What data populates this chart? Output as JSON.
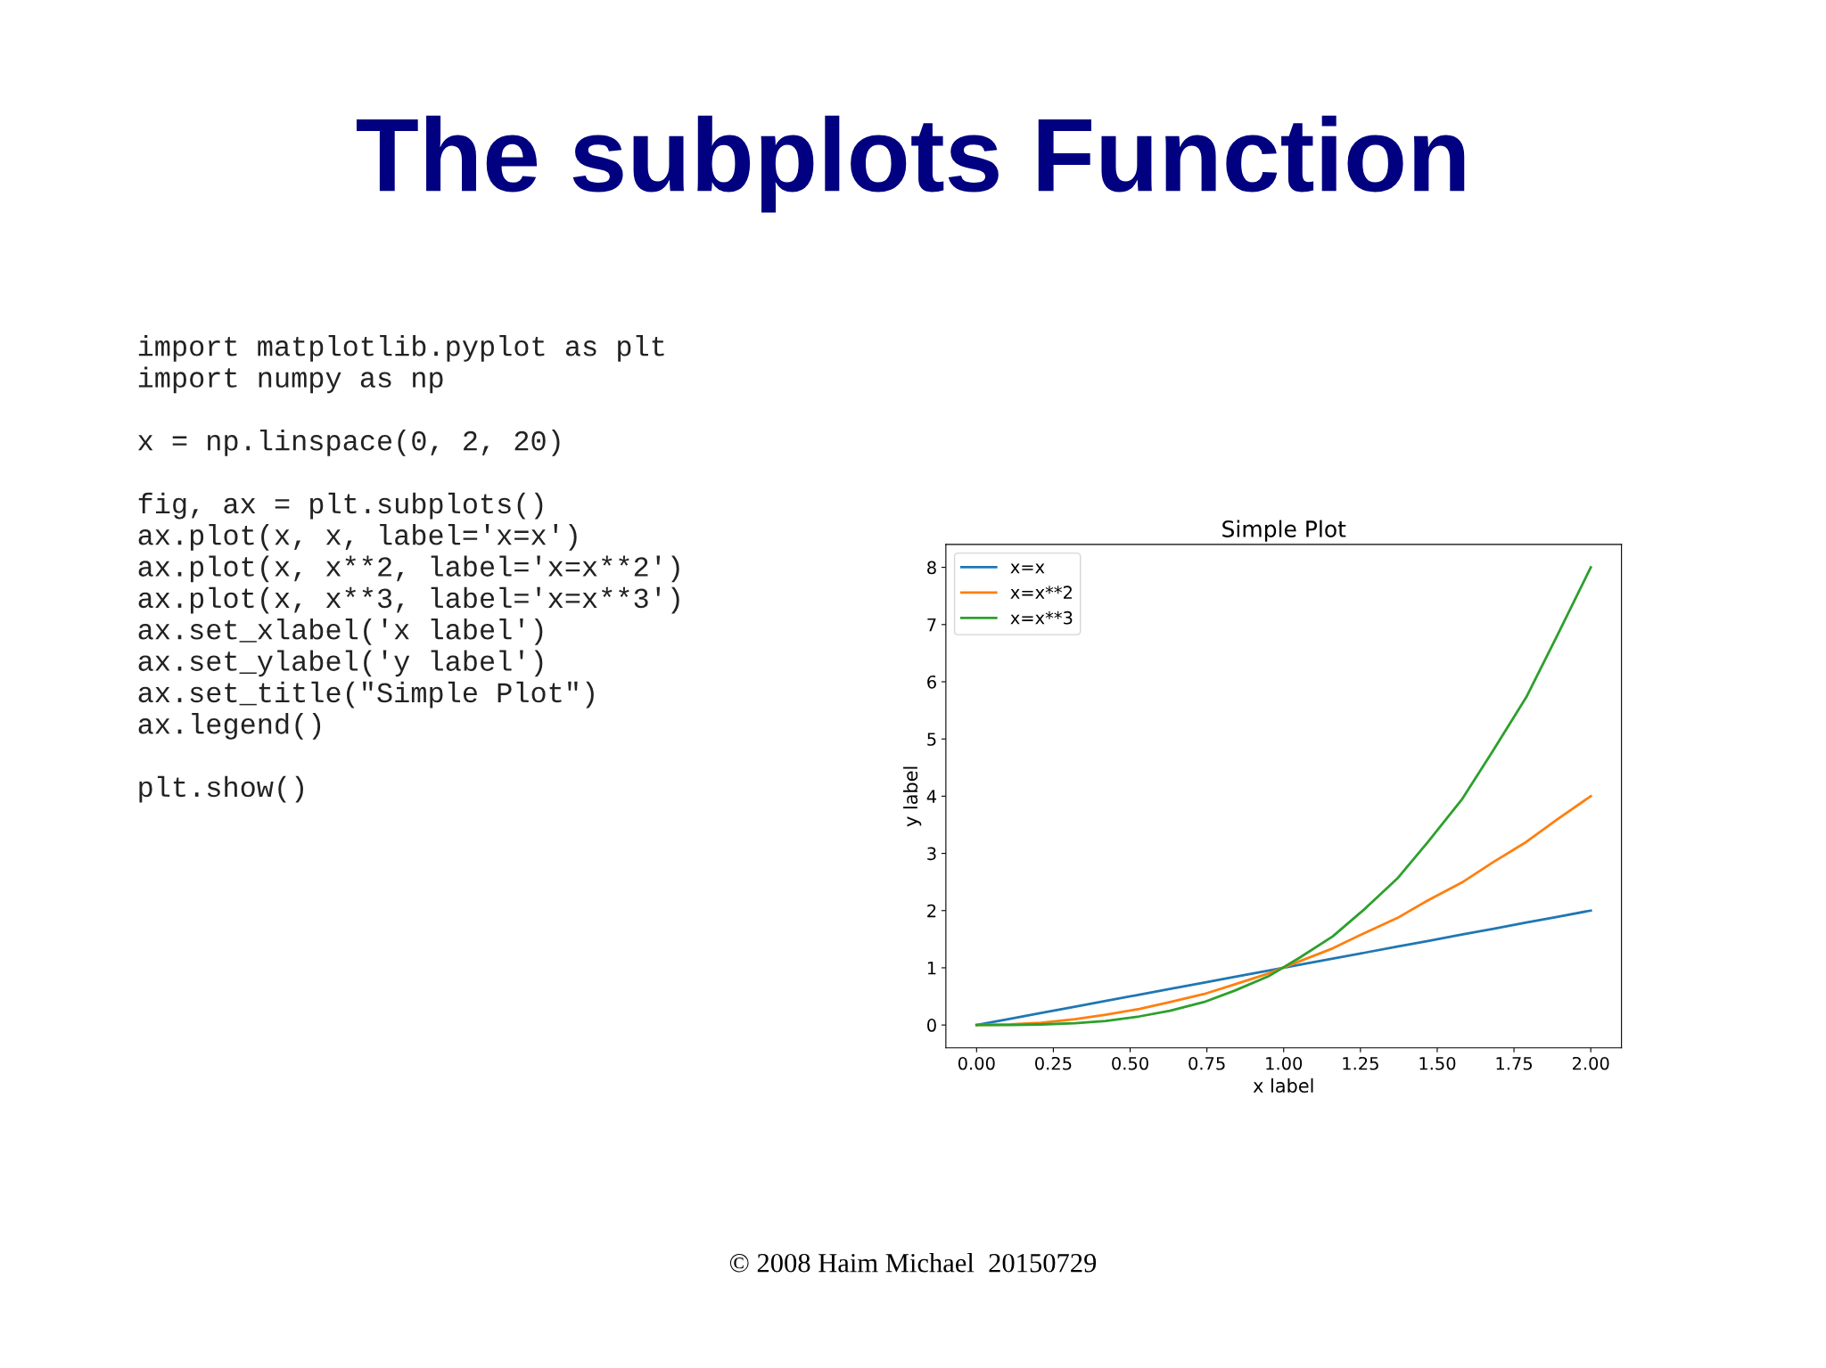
{
  "chart_data": {
    "type": "line",
    "title": "Simple Plot",
    "xlabel": "x label",
    "ylabel": "y label",
    "x": [
      0,
      0.11,
      0.21,
      0.32,
      0.42,
      0.53,
      0.63,
      0.74,
      0.84,
      0.95,
      1.05,
      1.16,
      1.26,
      1.37,
      1.47,
      1.58,
      1.68,
      1.79,
      1.89,
      2
    ],
    "series": [
      {
        "name": "x=x",
        "color": "#1f77b4",
        "values": [
          0,
          0.11,
          0.21,
          0.32,
          0.42,
          0.53,
          0.63,
          0.74,
          0.84,
          0.95,
          1.05,
          1.16,
          1.26,
          1.37,
          1.47,
          1.58,
          1.68,
          1.79,
          1.89,
          2
        ]
      },
      {
        "name": "x=x**2",
        "color": "#ff7f0e",
        "values": [
          0,
          0.01,
          0.04,
          0.1,
          0.18,
          0.28,
          0.4,
          0.54,
          0.71,
          0.9,
          1.11,
          1.34,
          1.6,
          1.87,
          2.18,
          2.49,
          2.84,
          3.2,
          3.59,
          4
        ]
      },
      {
        "name": "x=x**3",
        "color": "#2ca02c",
        "values": [
          0,
          0,
          0.01,
          0.03,
          0.07,
          0.15,
          0.25,
          0.4,
          0.6,
          0.85,
          1.17,
          1.55,
          2.01,
          2.56,
          3.2,
          3.94,
          4.78,
          5.73,
          6.8,
          8
        ]
      }
    ],
    "xlim": [
      -0.1,
      2.1
    ],
    "ylim": [
      -0.4,
      8.4
    ],
    "xticks": [
      {
        "value": 0,
        "label": "0.00"
      },
      {
        "value": 0.25,
        "label": "0.25"
      },
      {
        "value": 0.5,
        "label": "0.50"
      },
      {
        "value": 0.75,
        "label": "0.75"
      },
      {
        "value": 1,
        "label": "1.00"
      },
      {
        "value": 1.25,
        "label": "1.25"
      },
      {
        "value": 1.5,
        "label": "1.50"
      },
      {
        "value": 1.75,
        "label": "1.75"
      },
      {
        "value": 2,
        "label": "2.00"
      }
    ],
    "yticks": [
      0,
      1,
      2,
      3,
      4,
      5,
      6,
      7,
      8
    ],
    "legend": "top left",
    "grid": false,
    "marker": "none",
    "line_style": "solid",
    "annotations": [
      "The subplots Function",
      "import matplotlib.pyplot as plt\nimport numpy as np\n\nx = np.linspace(0, 2, 20)\n\nfig, ax = plt.subplots()\nax.plot(x, x, label='x=x')\nax.plot(x, x**2, label='x=x**2')\nax.plot(x, x**3, label='x=x**3')\nax.set_xlabel('x label')\nax.set_ylabel('y label')\nax.set_title(\"Simple Plot\")\nax.legend()\n\nplt.show()",
      "© 2008 Haim Michael  20150729"
    ]
  }
}
